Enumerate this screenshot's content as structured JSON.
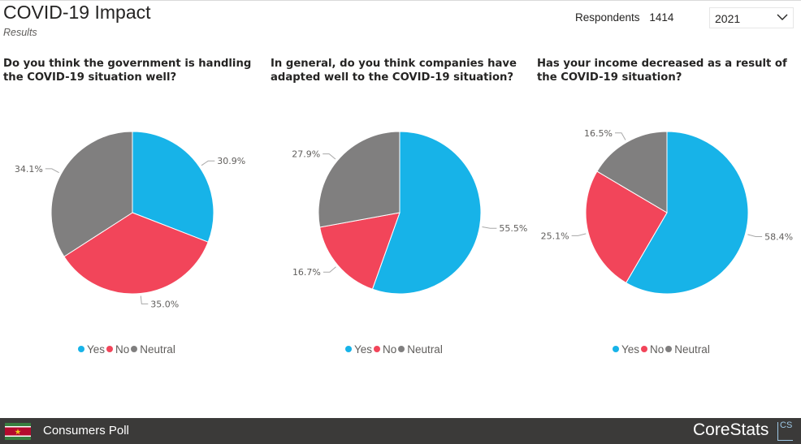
{
  "header": {
    "title": "COVID-19 Impact",
    "subtitle": "Results",
    "respondents_label": "Respondents",
    "respondents_value": "1414",
    "year_selected": "2021"
  },
  "colors": {
    "yes": "#17b3e8",
    "no": "#f2455a",
    "neutral": "#807f7f"
  },
  "chart_data": [
    {
      "type": "pie",
      "title": "Do you think the government is handling the COVID-19 situation well?",
      "categories": [
        "Yes",
        "No",
        "Neutral"
      ],
      "values": [
        30.9,
        35.0,
        34.1
      ],
      "labels": [
        "30.9%",
        "35.0%",
        "34.1%"
      ],
      "legend": "bottom"
    },
    {
      "type": "pie",
      "title": "In general, do you think companies have adapted well to the COVID-19 situation?",
      "categories": [
        "Yes",
        "No",
        "Neutral"
      ],
      "values": [
        55.5,
        16.7,
        27.9
      ],
      "labels": [
        "55.5%",
        "16.7%",
        "27.9%"
      ],
      "legend": "bottom"
    },
    {
      "type": "pie",
      "title": "Has your income decreased as a result of the COVID-19 situation?",
      "categories": [
        "Yes",
        "No",
        "Neutral"
      ],
      "values": [
        58.4,
        25.1,
        16.5
      ],
      "labels": [
        "58.4%",
        "25.1%",
        "16.5%"
      ],
      "legend": "bottom"
    }
  ],
  "legend_items": [
    "Yes",
    "No",
    "Neutral"
  ],
  "footer": {
    "poll_label": "Consumers Poll",
    "brand": "CoreStats",
    "brand_mark": "CS"
  }
}
